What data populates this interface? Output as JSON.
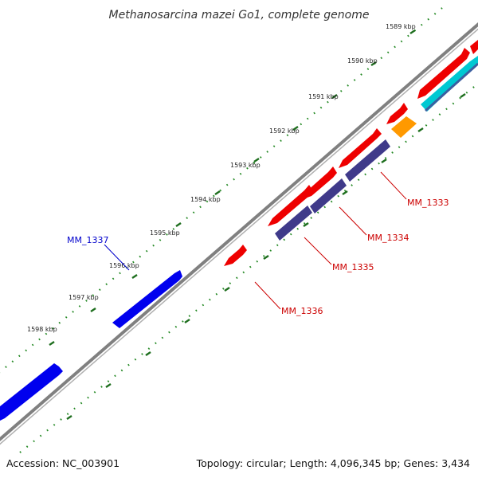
{
  "title": "Methanosarcina mazei Go1, complete genome",
  "scale_labels": [
    "1589 kbp",
    "1590 kbp",
    "1591 kbp",
    "1592 kbp",
    "1593 kbp",
    "1594 kbp",
    "1595 kbp",
    "1596 kbp",
    "1597 kbp",
    "1598 kbp"
  ],
  "gene_labels": [
    {
      "text": "MM_1333",
      "color": "#cc0000"
    },
    {
      "text": "MM_1334",
      "color": "#cc0000"
    },
    {
      "text": "MM_1335",
      "color": "#cc0000"
    },
    {
      "text": "MM_1336",
      "color": "#cc0000"
    },
    {
      "text": "MM_1337",
      "color": "#0000cc"
    }
  ],
  "colors": {
    "forward_gene": "#ee0000",
    "reverse_gene": "#3f3a8a",
    "blue_gene": "#0000ee",
    "cyan_gene": "#00c8d2",
    "orange_gene": "#ff9900",
    "backbone": "#888888",
    "scale_ticks": "#228822"
  },
  "footer": {
    "accession": "Accession: NC_003901",
    "summary": "Topology: circular; Length: 4,096,345 bp; Genes: 3,434"
  }
}
